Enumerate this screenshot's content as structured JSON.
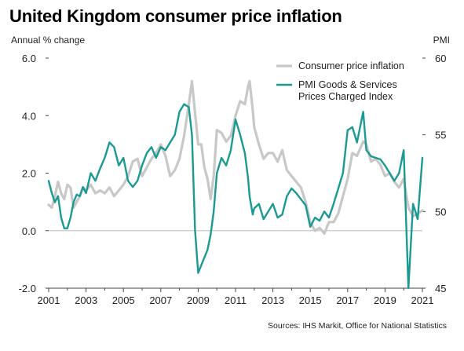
{
  "title": "United Kingdom consumer price inflation",
  "source": "Sources: IHS Markit, Office for National Statistics",
  "chart_data": {
    "type": "line",
    "ylabel_left": "Annual % change",
    "ylabel_right": "PMI",
    "left_axis": {
      "min": -2.0,
      "max": 6.0,
      "ticks": [
        "-2.0",
        "0.0",
        "2.0",
        "4.0",
        "6.0"
      ],
      "tick_values": [
        -2,
        0,
        2,
        4,
        6
      ]
    },
    "right_axis": {
      "min": 45,
      "max": 60,
      "ticks": [
        "45",
        "50",
        "55",
        "60"
      ],
      "tick_values": [
        45,
        50,
        55,
        60
      ]
    },
    "x_axis": {
      "min": 2001.0,
      "max": 2021.0,
      "ticks": [
        "2001",
        "2003",
        "2005",
        "2007",
        "2009",
        "2011",
        "2013",
        "2015",
        "2017",
        "2019",
        "2021"
      ]
    },
    "legend": [
      {
        "name": "Consumer price inflation",
        "color": "#c8c8c8"
      },
      {
        "name": "PMI Goods & Services\nPrices Charged Index",
        "color": "#1a9a92"
      }
    ],
    "legend_position": "top-right",
    "series": [
      {
        "name": "Consumer price inflation",
        "axis": "left",
        "color": "#c8c8c8",
        "points": [
          [
            2001.0,
            0.9
          ],
          [
            2001.17,
            0.8
          ],
          [
            2001.33,
            1.2
          ],
          [
            2001.5,
            1.7
          ],
          [
            2001.67,
            1.3
          ],
          [
            2001.83,
            1.1
          ],
          [
            2002.0,
            1.6
          ],
          [
            2002.17,
            1.5
          ],
          [
            2002.33,
            0.8
          ],
          [
            2002.5,
            1.0
          ],
          [
            2002.67,
            1.2
          ],
          [
            2002.83,
            1.5
          ],
          [
            2003.0,
            1.4
          ],
          [
            2003.25,
            1.6
          ],
          [
            2003.5,
            1.3
          ],
          [
            2003.75,
            1.4
          ],
          [
            2004.0,
            1.3
          ],
          [
            2004.25,
            1.5
          ],
          [
            2004.5,
            1.2
          ],
          [
            2004.75,
            1.4
          ],
          [
            2005.0,
            1.6
          ],
          [
            2005.25,
            1.9
          ],
          [
            2005.5,
            2.4
          ],
          [
            2005.75,
            2.5
          ],
          [
            2006.0,
            1.9
          ],
          [
            2006.25,
            2.2
          ],
          [
            2006.5,
            2.5
          ],
          [
            2006.75,
            2.7
          ],
          [
            2007.0,
            3.0
          ],
          [
            2007.25,
            2.6
          ],
          [
            2007.5,
            1.9
          ],
          [
            2007.75,
            2.1
          ],
          [
            2008.0,
            2.5
          ],
          [
            2008.25,
            3.3
          ],
          [
            2008.5,
            4.4
          ],
          [
            2008.67,
            5.2
          ],
          [
            2008.83,
            4.1
          ],
          [
            2009.0,
            3.0
          ],
          [
            2009.17,
            3.0
          ],
          [
            2009.33,
            2.2
          ],
          [
            2009.5,
            1.8
          ],
          [
            2009.67,
            1.1
          ],
          [
            2009.83,
            1.9
          ],
          [
            2010.0,
            3.5
          ],
          [
            2010.25,
            3.4
          ],
          [
            2010.5,
            3.1
          ],
          [
            2010.75,
            3.3
          ],
          [
            2011.0,
            4.0
          ],
          [
            2011.25,
            4.5
          ],
          [
            2011.5,
            4.4
          ],
          [
            2011.67,
            5.0
          ],
          [
            2011.75,
            5.2
          ],
          [
            2011.92,
            4.2
          ],
          [
            2012.0,
            3.6
          ],
          [
            2012.25,
            3.0
          ],
          [
            2012.5,
            2.5
          ],
          [
            2012.75,
            2.7
          ],
          [
            2013.0,
            2.7
          ],
          [
            2013.25,
            2.4
          ],
          [
            2013.5,
            2.8
          ],
          [
            2013.75,
            2.1
          ],
          [
            2014.0,
            1.9
          ],
          [
            2014.25,
            1.7
          ],
          [
            2014.5,
            1.5
          ],
          [
            2014.75,
            1.0
          ],
          [
            2015.0,
            0.3
          ],
          [
            2015.25,
            0.0
          ],
          [
            2015.5,
            0.1
          ],
          [
            2015.75,
            -0.1
          ],
          [
            2016.0,
            0.3
          ],
          [
            2016.25,
            0.3
          ],
          [
            2016.5,
            0.6
          ],
          [
            2016.75,
            1.2
          ],
          [
            2017.0,
            1.8
          ],
          [
            2017.25,
            2.7
          ],
          [
            2017.5,
            2.6
          ],
          [
            2017.83,
            3.1
          ],
          [
            2018.0,
            3.0
          ],
          [
            2018.25,
            2.4
          ],
          [
            2018.5,
            2.5
          ],
          [
            2018.75,
            2.3
          ],
          [
            2019.0,
            1.9
          ],
          [
            2019.25,
            2.0
          ],
          [
            2019.5,
            1.7
          ],
          [
            2019.75,
            1.5
          ],
          [
            2020.0,
            1.8
          ],
          [
            2020.25,
            0.8
          ],
          [
            2020.5,
            0.5
          ],
          [
            2020.75,
            0.6
          ],
          [
            2021.0,
            0.7
          ]
        ]
      },
      {
        "name": "PMI Goods & Services\nPrices Charged Index",
        "axis": "right",
        "color": "#1a9a92",
        "points": [
          [
            2001.0,
            52.0
          ],
          [
            2001.17,
            51.2
          ],
          [
            2001.33,
            50.6
          ],
          [
            2001.5,
            51.0
          ],
          [
            2001.67,
            49.6
          ],
          [
            2001.83,
            48.9
          ],
          [
            2002.0,
            48.9
          ],
          [
            2002.17,
            49.6
          ],
          [
            2002.33,
            50.6
          ],
          [
            2002.5,
            51.1
          ],
          [
            2002.67,
            51.0
          ],
          [
            2002.83,
            51.6
          ],
          [
            2003.0,
            51.2
          ],
          [
            2003.25,
            52.5
          ],
          [
            2003.5,
            52.0
          ],
          [
            2003.75,
            52.8
          ],
          [
            2004.0,
            53.5
          ],
          [
            2004.25,
            54.5
          ],
          [
            2004.5,
            54.2
          ],
          [
            2004.75,
            53.0
          ],
          [
            2005.0,
            53.5
          ],
          [
            2005.25,
            52.0
          ],
          [
            2005.5,
            51.6
          ],
          [
            2005.75,
            52.0
          ],
          [
            2006.0,
            53.0
          ],
          [
            2006.25,
            53.8
          ],
          [
            2006.5,
            54.2
          ],
          [
            2006.75,
            53.5
          ],
          [
            2007.0,
            54.2
          ],
          [
            2007.25,
            54.0
          ],
          [
            2007.5,
            54.5
          ],
          [
            2007.75,
            55.0
          ],
          [
            2008.0,
            56.5
          ],
          [
            2008.25,
            57.0
          ],
          [
            2008.5,
            56.8
          ],
          [
            2008.67,
            55.0
          ],
          [
            2008.83,
            48.8
          ],
          [
            2009.0,
            46.0
          ],
          [
            2009.17,
            46.5
          ],
          [
            2009.33,
            47.0
          ],
          [
            2009.5,
            47.5
          ],
          [
            2009.67,
            48.5
          ],
          [
            2009.83,
            50.0
          ],
          [
            2010.0,
            52.5
          ],
          [
            2010.25,
            53.5
          ],
          [
            2010.5,
            53.0
          ],
          [
            2010.75,
            54.0
          ],
          [
            2011.0,
            56.0
          ],
          [
            2011.25,
            55.0
          ],
          [
            2011.5,
            53.8
          ],
          [
            2011.67,
            52.2
          ],
          [
            2011.75,
            51.0
          ],
          [
            2011.92,
            49.8
          ],
          [
            2012.0,
            50.2
          ],
          [
            2012.25,
            50.5
          ],
          [
            2012.5,
            49.5
          ],
          [
            2012.75,
            50.0
          ],
          [
            2013.0,
            50.5
          ],
          [
            2013.25,
            49.6
          ],
          [
            2013.5,
            49.8
          ],
          [
            2013.75,
            51.0
          ],
          [
            2014.0,
            51.5
          ],
          [
            2014.25,
            51.2
          ],
          [
            2014.5,
            50.8
          ],
          [
            2014.75,
            50.4
          ],
          [
            2015.0,
            49.0
          ],
          [
            2015.25,
            49.6
          ],
          [
            2015.5,
            49.4
          ],
          [
            2015.75,
            50.0
          ],
          [
            2016.0,
            49.6
          ],
          [
            2016.25,
            50.5
          ],
          [
            2016.5,
            51.5
          ],
          [
            2016.75,
            52.5
          ],
          [
            2017.0,
            55.3
          ],
          [
            2017.25,
            55.5
          ],
          [
            2017.5,
            54.5
          ],
          [
            2017.83,
            56.5
          ],
          [
            2018.0,
            54.0
          ],
          [
            2018.25,
            53.6
          ],
          [
            2018.5,
            53.5
          ],
          [
            2018.75,
            53.4
          ],
          [
            2019.0,
            53.0
          ],
          [
            2019.25,
            52.5
          ],
          [
            2019.5,
            52.0
          ],
          [
            2019.75,
            52.5
          ],
          [
            2020.0,
            54.0
          ],
          [
            2020.25,
            45.0
          ],
          [
            2020.5,
            50.5
          ],
          [
            2020.75,
            49.5
          ],
          [
            2021.0,
            53.5
          ]
        ]
      }
    ]
  }
}
